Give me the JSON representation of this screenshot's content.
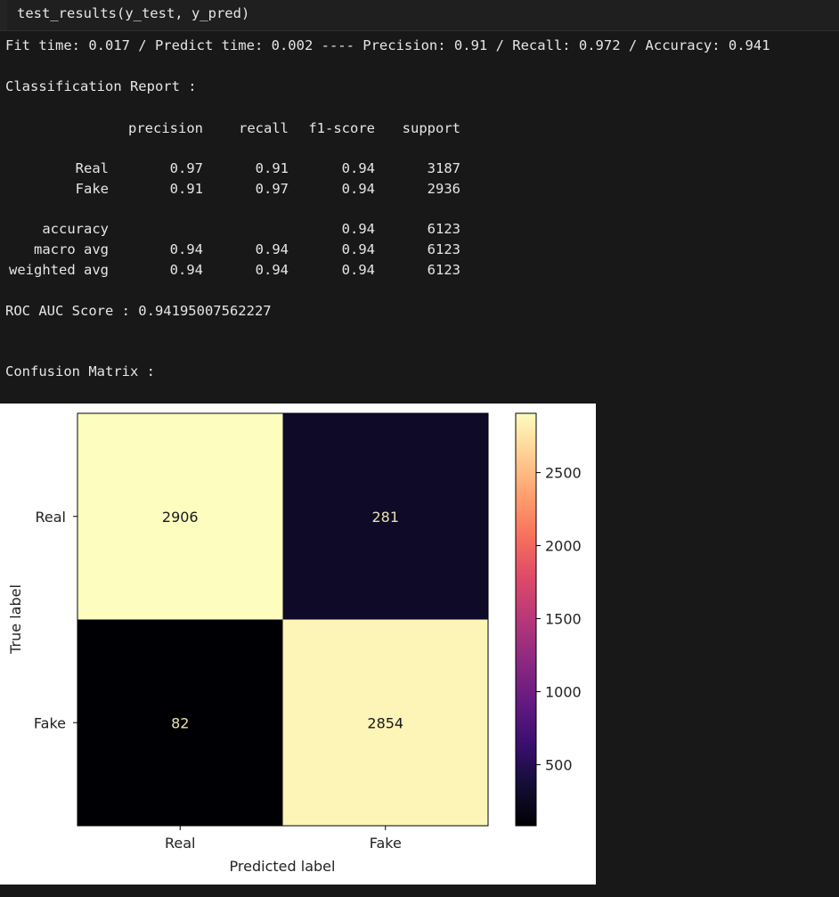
{
  "input_cell": {
    "code": "test_results(y_test, y_pred)"
  },
  "output": {
    "timing_line": "Fit time: 0.017 / Predict time: 0.002 ---- Precision: 0.91 / Recall: 0.972 / Accuracy: 0.941",
    "report_title": "Classification Report :",
    "report": {
      "headers": [
        "precision",
        "recall",
        "f1-score",
        "support"
      ],
      "rows": [
        {
          "label": "Real",
          "cells": [
            "0.97",
            "0.91",
            "0.94",
            "3187"
          ]
        },
        {
          "label": "Fake",
          "cells": [
            "0.91",
            "0.97",
            "0.94",
            "2936"
          ]
        },
        {
          "label": "accuracy",
          "cells": [
            "",
            "",
            "0.94",
            "6123"
          ]
        },
        {
          "label": "macro avg",
          "cells": [
            "0.94",
            "0.94",
            "0.94",
            "6123"
          ]
        },
        {
          "label": "weighted avg",
          "cells": [
            "0.94",
            "0.94",
            "0.94",
            "6123"
          ]
        }
      ]
    },
    "roc_line": "ROC AUC Score : 0.94195007562227",
    "cm_title": "Confusion Matrix :"
  },
  "chart_data": {
    "type": "heatmap",
    "title": "",
    "xlabel": "Predicted label",
    "ylabel": "True label",
    "x_categories": [
      "Real",
      "Fake"
    ],
    "y_categories": [
      "Real",
      "Fake"
    ],
    "matrix": [
      [
        2906,
        281
      ],
      [
        82,
        2854
      ]
    ],
    "colormap": "magma",
    "colorbar": {
      "min": 82,
      "max": 2906,
      "ticks": [
        500,
        1000,
        1500,
        2000,
        2500
      ]
    }
  }
}
